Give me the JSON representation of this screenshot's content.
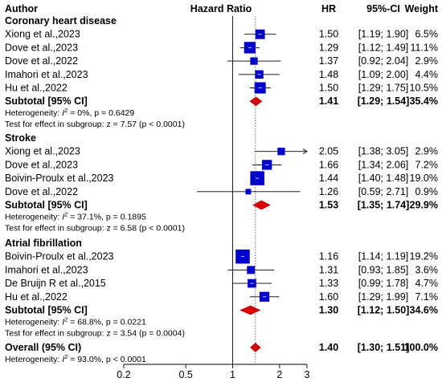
{
  "header": {
    "author": "Author",
    "hazard_ratio": "Hazard Ratio",
    "hr": "HR",
    "ci": "95%-CI",
    "weight": "Weight"
  },
  "chart_data": {
    "type": "forest",
    "x_scale": "log",
    "xlim": [
      0.2,
      3
    ],
    "ticks": [
      "0.2",
      "0.5",
      "1",
      "2",
      "3"
    ],
    "tick_values": [
      0.2,
      0.5,
      1,
      2,
      3
    ],
    "reference_line": 1,
    "overall_line": 1.4,
    "colors": {
      "box": "#0000cc",
      "diamond": "#dd0000",
      "ci_line": "#000000",
      "dotted": "#555555"
    },
    "groups": [
      {
        "name": "Coronary heart disease",
        "studies": [
          {
            "label": "Xiong et al.,2023",
            "hr": 1.5,
            "lo": 1.19,
            "hi": 1.9,
            "hr_text": "1.50",
            "ci_text": "[1.19; 1.90]",
            "weight_text": "6.5%",
            "weight": 6.5
          },
          {
            "label": "Dove et al.,2023",
            "hr": 1.29,
            "lo": 1.12,
            "hi": 1.49,
            "hr_text": "1.29",
            "ci_text": "[1.12; 1.49]",
            "weight_text": "11.1%",
            "weight": 11.1
          },
          {
            "label": "Dove et al.,2022",
            "hr": 1.37,
            "lo": 0.92,
            "hi": 2.04,
            "hr_text": "1.37",
            "ci_text": "[0.92; 2.04]",
            "weight_text": "2.9%",
            "weight": 2.9
          },
          {
            "label": "Imahori et al.,2023",
            "hr": 1.48,
            "lo": 1.09,
            "hi": 2.0,
            "hr_text": "1.48",
            "ci_text": "[1.09; 2.00]",
            "weight_text": "4.4%",
            "weight": 4.4
          },
          {
            "label": "Hu et al.,2022",
            "hr": 1.5,
            "lo": 1.29,
            "hi": 1.75,
            "hr_text": "1.50",
            "ci_text": "[1.29; 1.75]",
            "weight_text": "10.5%",
            "weight": 10.5
          }
        ],
        "subtotal": {
          "label": "Subtotal [95% CI]",
          "hr": 1.41,
          "lo": 1.29,
          "hi": 1.54,
          "hr_text": "1.41",
          "ci_text": "[1.29; 1.54]",
          "weight_text": "35.4%"
        },
        "heterogeneity": {
          "prefix": "Heterogeneity: ",
          "i2_symbol": "I",
          "i2_sup": "2",
          "rest": " = 0%, p = 0.6429"
        },
        "test": "Test for effect in subgroup: z = 7.57 (p < 0.0001)"
      },
      {
        "name": "Stroke",
        "studies": [
          {
            "label": "Xiong et al.,2023",
            "hr": 2.05,
            "lo": 1.38,
            "hi": 3.05,
            "hr_text": "2.05",
            "ci_text": "[1.38; 3.05]",
            "weight_text": "2.9%",
            "weight": 2.9
          },
          {
            "label": "Dove et al.,2023",
            "hr": 1.66,
            "lo": 1.34,
            "hi": 2.06,
            "hr_text": "1.66",
            "ci_text": "[1.34; 2.06]",
            "weight_text": "7.2%",
            "weight": 7.2
          },
          {
            "label": "Boivin-Proulx et al.,2023",
            "hr": 1.44,
            "lo": 1.4,
            "hi": 1.48,
            "hr_text": "1.44",
            "ci_text": "[1.40; 1.48]",
            "weight_text": "19.0%",
            "weight": 19.0
          },
          {
            "label": "Dove et al.,2022",
            "hr": 1.26,
            "lo": 0.59,
            "hi": 2.71,
            "hr_text": "1.26",
            "ci_text": "[0.59; 2.71]",
            "weight_text": "0.9%",
            "weight": 0.9
          }
        ],
        "subtotal": {
          "label": "Subtotal [95% CI]",
          "hr": 1.53,
          "lo": 1.35,
          "hi": 1.74,
          "hr_text": "1.53",
          "ci_text": "[1.35; 1.74]",
          "weight_text": "29.9%"
        },
        "heterogeneity": {
          "prefix": "Heterogeneity: ",
          "i2_symbol": "I",
          "i2_sup": "2",
          "rest": " = 37.1%, p = 0.1895"
        },
        "test": "Test for effect in subgroup: z = 6.58 (p < 0.0001)"
      },
      {
        "name": "Atrial fibrillation",
        "studies": [
          {
            "label": "Boivin-Proulx et al.,2023",
            "hr": 1.16,
            "lo": 1.14,
            "hi": 1.19,
            "hr_text": "1.16",
            "ci_text": "[1.14; 1.19]",
            "weight_text": "19.2%",
            "weight": 19.2
          },
          {
            "label": "Imahori et al.,2023",
            "hr": 1.31,
            "lo": 0.93,
            "hi": 1.85,
            "hr_text": "1.31",
            "ci_text": "[0.93; 1.85]",
            "weight_text": "3.6%",
            "weight": 3.6
          },
          {
            "label": "De Bruijn R et al.,2015",
            "hr": 1.33,
            "lo": 0.99,
            "hi": 1.78,
            "hr_text": "1.33",
            "ci_text": "[0.99; 1.78]",
            "weight_text": "4.7%",
            "weight": 4.7
          },
          {
            "label": "Hu et al.,2022",
            "hr": 1.6,
            "lo": 1.29,
            "hi": 1.99,
            "hr_text": "1.60",
            "ci_text": "[1.29; 1.99]",
            "weight_text": "7.1%",
            "weight": 7.1
          }
        ],
        "subtotal": {
          "label": "Subtotal [95% CI]",
          "hr": 1.3,
          "lo": 1.12,
          "hi": 1.5,
          "hr_text": "1.30",
          "ci_text": "[1.12; 1.50]",
          "weight_text": "34.6%"
        },
        "heterogeneity": {
          "prefix": "Heterogeneity: ",
          "i2_symbol": "I",
          "i2_sup": "2",
          "rest": " = 68.8%, p = 0.0221"
        },
        "test": "Test for effect in subgroup: z = 3.54 (p = 0.0004)"
      }
    ],
    "overall": {
      "label": "Overall (95% CI)",
      "hr": 1.4,
      "lo": 1.3,
      "hi": 1.51,
      "hr_text": "1.40",
      "ci_text": "[1.30; 1.51]",
      "weight_text": "100.0%",
      "heterogeneity": {
        "prefix": "Heterogeneity: ",
        "i2_symbol": "I",
        "i2_sup": "2",
        "rest": " = 93.0%, p < 0.0001"
      }
    }
  }
}
